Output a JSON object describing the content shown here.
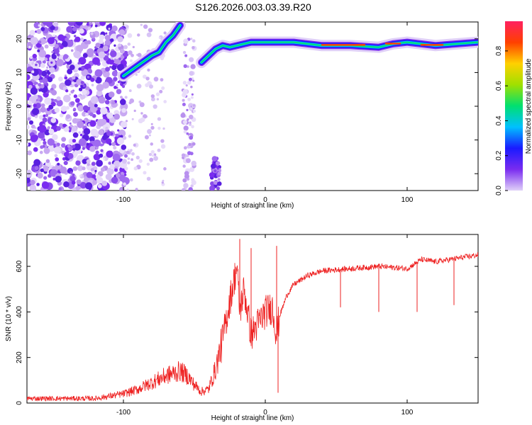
{
  "title": "S126.2026.003.03.39.R20",
  "chart_data": [
    {
      "type": "heatmap",
      "xlabel": "Height of straight line (km)",
      "ylabel": "Frequency (Hz)",
      "xlim": [
        -168,
        150
      ],
      "ylim": [
        -25,
        25
      ],
      "xticks": [
        -100,
        0,
        100
      ],
      "yticks": [
        -20,
        -10,
        0,
        10,
        20
      ],
      "colorbar": {
        "label": "Normalized spectral amplitude",
        "range": [
          0.0,
          0.97
        ],
        "ticks": [
          0.0,
          0.2,
          0.4,
          0.6,
          0.8
        ],
        "colors": [
          "#e0d0f8",
          "#7a2cf0",
          "#1a1aff",
          "#00c0ff",
          "#00e070",
          "#a0e000",
          "#ffd000",
          "#ff4000",
          "#ff2060"
        ]
      },
      "ridges": [
        {
          "x": [
            -100,
            -90,
            -80,
            -75,
            -70,
            -65,
            -60
          ],
          "y": [
            9,
            12,
            15,
            16,
            19,
            21,
            24
          ]
        },
        {
          "x": [
            -45,
            -40,
            -35,
            -30,
            -25,
            -20,
            -10,
            0,
            10,
            20,
            40,
            60,
            80,
            90,
            100,
            120,
            150
          ],
          "y": [
            13,
            15,
            17,
            18,
            17.5,
            18,
            19,
            19,
            19,
            19,
            18,
            18,
            17.5,
            18.5,
            19,
            18,
            19
          ]
        }
      ]
    },
    {
      "type": "line",
      "xlabel": "Height of straight line (km)",
      "ylabel": "SNR (10 * v/v)",
      "xlim": [
        -168,
        150
      ],
      "ylim": [
        0,
        740
      ],
      "xticks": [
        -100,
        0,
        100
      ],
      "yticks": [
        0,
        200,
        400,
        600
      ],
      "color": "#ee2222",
      "x": [
        -168,
        -120,
        -100,
        -90,
        -80,
        -70,
        -60,
        -55,
        -50,
        -45,
        -40,
        -35,
        -30,
        -25,
        -20,
        -18,
        -15,
        -10,
        -5,
        0,
        5,
        8,
        10,
        15,
        20,
        30,
        40,
        60,
        80,
        100,
        110,
        120,
        130,
        140,
        150
      ],
      "values": [
        20,
        20,
        40,
        60,
        90,
        120,
        140,
        120,
        80,
        50,
        60,
        150,
        280,
        450,
        600,
        400,
        500,
        300,
        350,
        400,
        420,
        300,
        380,
        470,
        520,
        560,
        580,
        590,
        600,
        590,
        630,
        620,
        630,
        640,
        650
      ],
      "spikes": [
        {
          "x": -18,
          "value": 720
        },
        {
          "x": -10,
          "value": 680
        },
        {
          "x": 8,
          "value": 690
        },
        {
          "x": 9,
          "value": 45
        },
        {
          "x": 53,
          "value": 420
        },
        {
          "x": 80,
          "value": 400
        },
        {
          "x": 107,
          "value": 400
        },
        {
          "x": 133,
          "value": 430
        }
      ]
    }
  ]
}
